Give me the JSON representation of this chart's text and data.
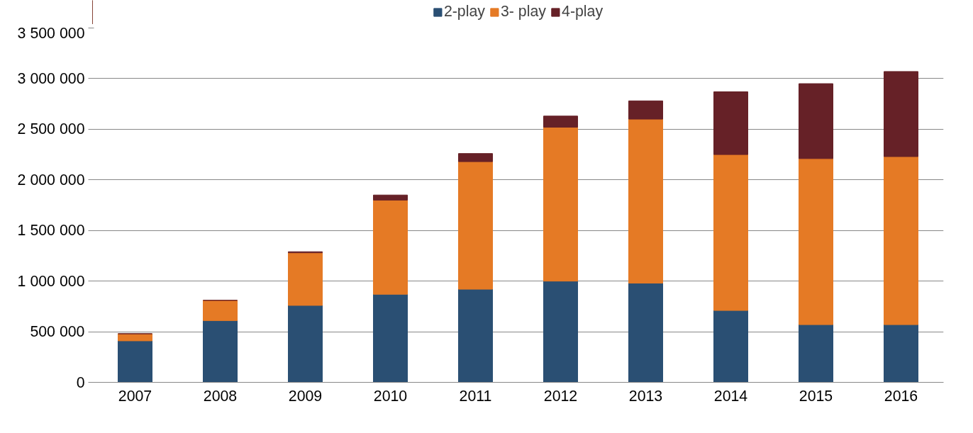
{
  "chart_data": {
    "type": "bar",
    "stacked": true,
    "legend": "top",
    "grid": "y",
    "categories": [
      "2007",
      "2008",
      "2009",
      "2010",
      "2011",
      "2012",
      "2013",
      "2014",
      "2015",
      "2016"
    ],
    "series": [
      {
        "name": "2-play",
        "color": "#2a4f73",
        "values": [
          410000,
          610000,
          760000,
          870000,
          920000,
          1000000,
          980000,
          710000,
          570000,
          570000
        ]
      },
      {
        "name": "3- play",
        "color": "#e57a25",
        "values": [
          70000,
          200000,
          520000,
          930000,
          1260000,
          1520000,
          1620000,
          1540000,
          1640000,
          1660000
        ]
      },
      {
        "name": "4-play",
        "color": "#662127",
        "values": [
          0,
          0,
          10000,
          50000,
          80000,
          110000,
          180000,
          620000,
          740000,
          840000
        ]
      }
    ],
    "ylim": [
      0,
      3500000
    ],
    "yticks": [
      0,
      {
        "value": 500000,
        "label": "500 000"
      },
      {
        "value": 1000000,
        "label": "1 000 000"
      },
      {
        "value": 1500000,
        "label": "1 500 000"
      },
      {
        "value": 2000000,
        "label": "2 000 000"
      },
      {
        "value": 2500000,
        "label": "2 500 000"
      },
      {
        "value": 3000000,
        "label": "3 000 000"
      },
      {
        "value": 3500000,
        "label": "3 500 000"
      }
    ]
  }
}
